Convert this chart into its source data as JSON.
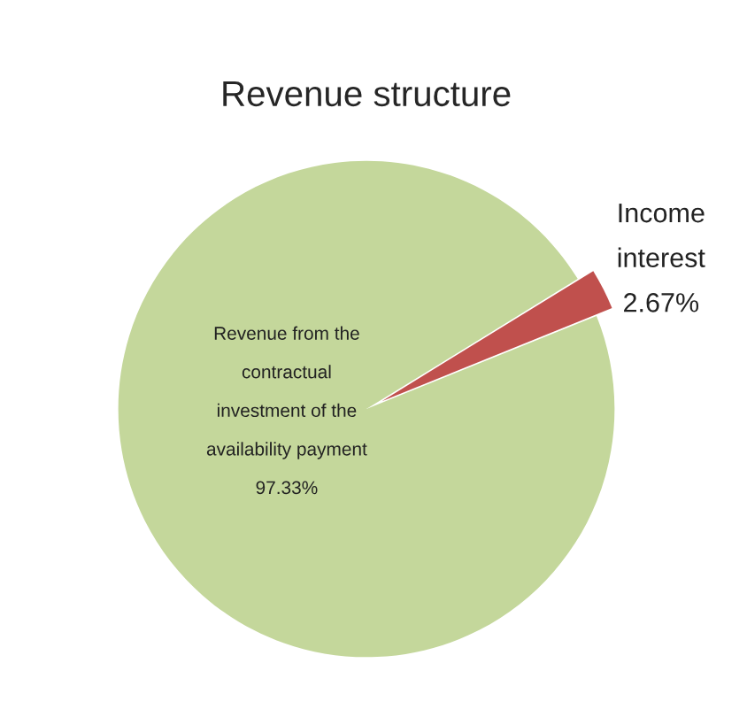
{
  "chart_data": {
    "type": "pie",
    "title": "Revenue structure",
    "categories": [
      "Income\ninterest",
      "Revenue from the\ncontractual\ninvestment of the\navailability payment"
    ],
    "values": [
      2.67,
      97.33
    ],
    "colors": [
      "#c0504d",
      "#c4d79b"
    ],
    "value_labels": [
      "2.67%",
      "97.33%"
    ]
  }
}
